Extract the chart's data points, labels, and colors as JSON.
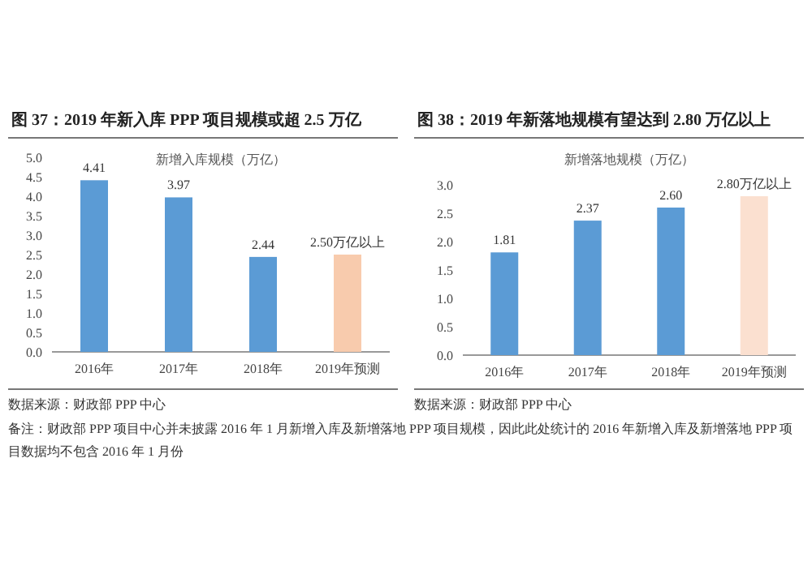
{
  "chart_data": [
    {
      "type": "bar",
      "title": "图 37：2019 年新入库 PPP 项目规模或超 2.5 万亿",
      "subtitle": "新增入库规模（万亿）",
      "categories": [
        "2016年",
        "2017年",
        "2018年",
        "2019年预测"
      ],
      "values": [
        4.41,
        3.97,
        2.44,
        2.5
      ],
      "colors": [
        "#5b9bd5",
        "#5b9bd5",
        "#5b9bd5",
        "#f8cbad"
      ],
      "value_labels": [
        "4.41",
        "3.97",
        "2.44",
        "2.50万亿以上"
      ],
      "ylim": [
        0,
        5
      ],
      "yticks": [
        {
          "value": 0,
          "label": "0.0"
        },
        {
          "value": 0.5,
          "label": "0.5"
        },
        {
          "value": 1,
          "label": "1.0"
        },
        {
          "value": 1.5,
          "label": "1.5"
        },
        {
          "value": 2,
          "label": "2.0"
        },
        {
          "value": 2.5,
          "label": "2.5"
        },
        {
          "value": 3,
          "label": "3.0"
        },
        {
          "value": 3.5,
          "label": "3.5"
        },
        {
          "value": 4,
          "label": "4.0"
        },
        {
          "value": 4.5,
          "label": "4.5"
        },
        {
          "value": 5,
          "label": "5.0"
        }
      ],
      "annotations": [
        "数据来源：财政部 PPP 中心",
        "备注：财政部 PPP 项目中心并未披露 2016 年 1 月新增入库及新增落地 PPP 项目规模，因此此处统计的 2016 年新增入库及新增落地 PPP 项目数据均不包含 2016 年 1 月份"
      ]
    },
    {
      "type": "bar",
      "title": "图 38：2019 年新落地规模有望达到 2.80 万亿以上",
      "subtitle": "新增落地规模（万亿）",
      "categories": [
        "2016年",
        "2017年",
        "2018年",
        "2019年预测"
      ],
      "values": [
        1.81,
        2.37,
        2.6,
        2.8
      ],
      "colors": [
        "#5b9bd5",
        "#5b9bd5",
        "#5b9bd5",
        "#fbe0d0"
      ],
      "value_labels": [
        "1.81",
        "2.37",
        "2.60",
        "2.80万亿以上"
      ],
      "ylim": [
        0,
        3
      ],
      "yticks": [
        {
          "value": 0,
          "label": "0.0"
        },
        {
          "value": 0.5,
          "label": "0.5"
        },
        {
          "value": 1,
          "label": "1.0"
        },
        {
          "value": 1.5,
          "label": "1.5"
        },
        {
          "value": 2,
          "label": "2.0"
        },
        {
          "value": 2.5,
          "label": "2.5"
        },
        {
          "value": 3,
          "label": "3.0"
        }
      ],
      "annotations": [
        "数据来源：财政部 PPP 中心"
      ]
    }
  ]
}
